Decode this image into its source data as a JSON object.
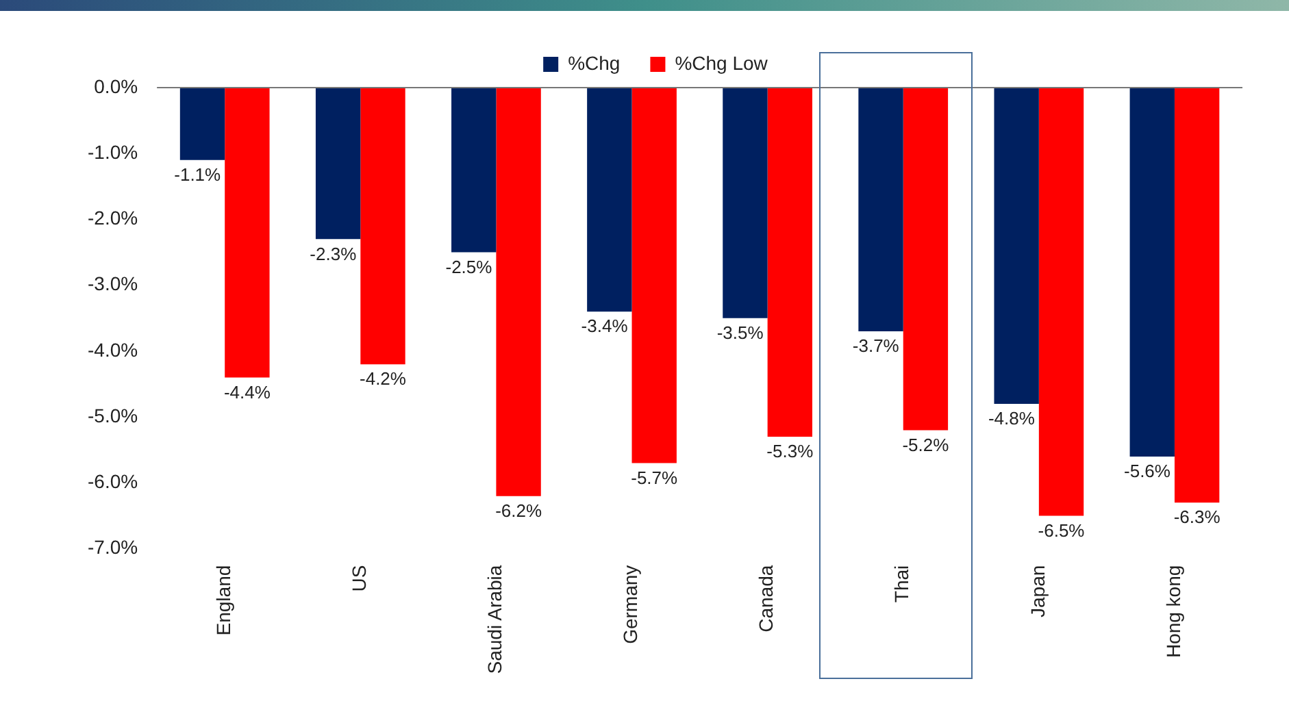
{
  "chart_data": {
    "type": "bar",
    "categories": [
      "England",
      "US",
      "Saudi Arabia",
      "Germany",
      "Canada",
      "Thai",
      "Japan",
      "Hong kong"
    ],
    "series": [
      {
        "name": "%Chg",
        "color": "#002060",
        "values": [
          -1.1,
          -2.3,
          -2.5,
          -3.4,
          -3.5,
          -3.7,
          -4.8,
          -5.6
        ],
        "value_labels": [
          "-1.1%",
          "-2.3%",
          "-2.5%",
          "-3.4%",
          "-3.5%",
          "-3.7%",
          "-4.8%",
          "-5.6%"
        ]
      },
      {
        "name": "%Chg Low",
        "color": "#ff0000",
        "values": [
          -4.4,
          -4.2,
          -6.2,
          -5.7,
          -5.3,
          -5.2,
          -6.5,
          -6.3
        ],
        "value_labels": [
          "-4.4%",
          "-4.2%",
          "-6.2%",
          "-5.7%",
          "-5.3%",
          "-5.2%",
          "-6.5%",
          "-6.3%"
        ]
      }
    ],
    "ylim": [
      -7,
      0
    ],
    "yticks": [
      {
        "value": 0,
        "label": "0.0%"
      },
      {
        "value": -1,
        "label": "-1.0%"
      },
      {
        "value": -2,
        "label": "-2.0%"
      },
      {
        "value": -3,
        "label": "-3.0%"
      },
      {
        "value": -4,
        "label": "-4.0%"
      },
      {
        "value": -5,
        "label": "-5.0%"
      },
      {
        "value": -6,
        "label": "-6.0%"
      },
      {
        "value": -7,
        "label": "-7.0%"
      }
    ],
    "grid": false,
    "legend": "top"
  }
}
